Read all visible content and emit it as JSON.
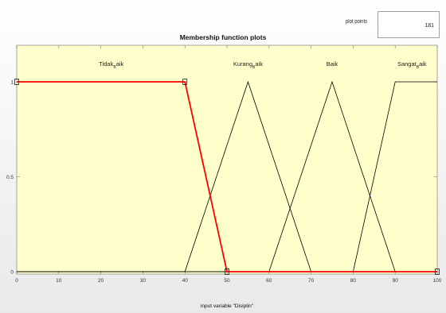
{
  "plot_points": {
    "label": "plot points",
    "value": "181"
  },
  "chart_data": {
    "type": "line",
    "title": "Membership function plots",
    "xlabel": "input variable \"Disiplin\"",
    "ylabel": "",
    "xlim": [
      0,
      100
    ],
    "ylim": [
      0,
      1
    ],
    "x_ticks": [
      0,
      10,
      20,
      30,
      40,
      50,
      60,
      70,
      80,
      90,
      100
    ],
    "y_ticks": [
      0,
      0.5,
      1
    ],
    "background_color": "#ffffcc",
    "selected_color": "#ff0000",
    "default_color": "#000000",
    "series": [
      {
        "name": "Tidak_Baik",
        "label_main": "Tidak",
        "label_sub": "B",
        "label_rest": "aik",
        "label_x": 22.5,
        "selected": true,
        "points": [
          [
            0,
            1
          ],
          [
            40,
            1
          ],
          [
            50,
            0
          ],
          [
            100,
            0
          ]
        ]
      },
      {
        "name": "Kurang_Baik",
        "label_main": "Kurang",
        "label_sub": "B",
        "label_rest": "aik",
        "label_x": 55,
        "selected": false,
        "points": [
          [
            0,
            0
          ],
          [
            40,
            0
          ],
          [
            55,
            1
          ],
          [
            70,
            0
          ],
          [
            100,
            0
          ]
        ]
      },
      {
        "name": "Baik",
        "label_main": "Baik",
        "label_sub": "",
        "label_rest": "",
        "label_x": 75,
        "selected": false,
        "points": [
          [
            0,
            0
          ],
          [
            60,
            0
          ],
          [
            75,
            1
          ],
          [
            90,
            0
          ],
          [
            100,
            0
          ]
        ]
      },
      {
        "name": "Sangat_Baik",
        "label_main": "Sangat",
        "label_sub": "B",
        "label_rest": "aik",
        "label_x": 94,
        "selected": false,
        "points": [
          [
            0,
            0
          ],
          [
            80,
            0
          ],
          [
            90,
            1
          ],
          [
            100,
            1
          ]
        ]
      }
    ]
  }
}
